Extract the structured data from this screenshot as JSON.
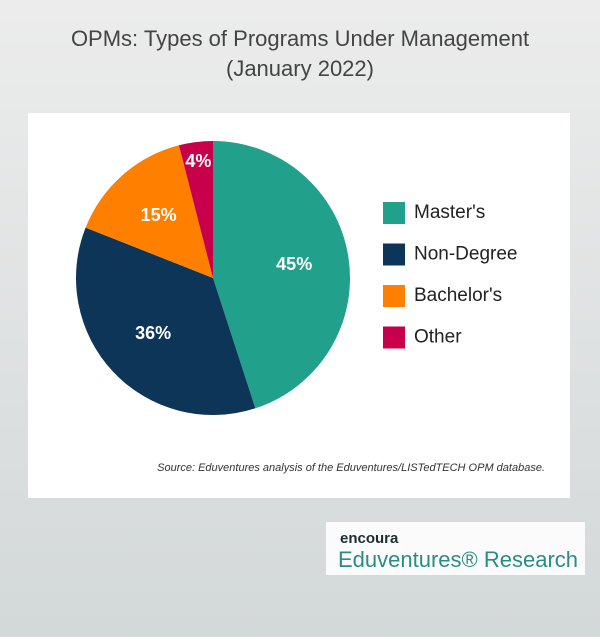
{
  "chart_data": {
    "type": "pie",
    "title": "OPMs: Types of Programs Under Management",
    "subtitle": "(January 2022)",
    "categories": [
      "Master's",
      "Non-Degree",
      "Bachelor's",
      "Other"
    ],
    "values": [
      45,
      36,
      15,
      4
    ],
    "value_labels": [
      "45%",
      "36%",
      "15%",
      "4%"
    ],
    "colors": [
      "#21a08b",
      "#0d3558",
      "#ff7f00",
      "#c8004c"
    ],
    "legend": "right",
    "source": "Source: Eduventures analysis of the Eduventures/LISTedTECH OPM database."
  },
  "branding": {
    "brand": "encoura",
    "product": "Eduventures® Research"
  }
}
